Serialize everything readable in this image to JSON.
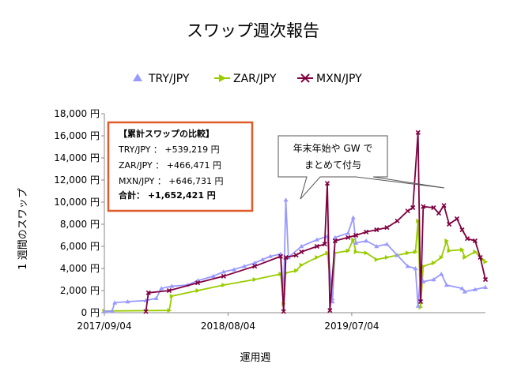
{
  "chart_data": {
    "type": "line",
    "title": "スワップ週次報告",
    "xlabel": "運用週",
    "ylabel": "1 週間のスワップ",
    "ylim": [
      0,
      18000
    ],
    "y_ticks": [
      "0 円",
      "2,000 円",
      "4,000 円",
      "6,000 円",
      "8,000 円",
      "10,000 円",
      "12,000 円",
      "14,000 円",
      "16,000 円",
      "18,000 円"
    ],
    "x_ticks": [
      "2017/09/04",
      "2018/08/04",
      "2019/07/04"
    ],
    "x_range": [
      "2017/09/04",
      "2020/06/29"
    ],
    "grid": false,
    "legend_position": "top",
    "series": [
      {
        "name": "TRY/JPY",
        "color": "#9999ff",
        "marker": "triangle",
        "points": [
          [
            "2017/09/04",
            100
          ],
          [
            "2017/09/25",
            150
          ],
          [
            "2017/10/02",
            900
          ],
          [
            "2017/11/06",
            1000
          ],
          [
            "2017/12/25",
            1100
          ],
          [
            "2018/01/22",
            1300
          ],
          [
            "2018/02/05",
            2200
          ],
          [
            "2018/03/05",
            2400
          ],
          [
            "2018/04/16",
            2500
          ],
          [
            "2018/05/14",
            2900
          ],
          [
            "2018/06/25",
            3300
          ],
          [
            "2018/07/23",
            3700
          ],
          [
            "2018/08/20",
            3900
          ],
          [
            "2018/09/17",
            4200
          ],
          [
            "2018/10/15",
            4500
          ],
          [
            "2018/11/05",
            4800
          ],
          [
            "2018/11/26",
            5100
          ],
          [
            "2018/12/24",
            5300
          ],
          [
            "2019/01/01",
            1800
          ],
          [
            "2019/01/07",
            10200
          ],
          [
            "2019/01/14",
            5000
          ],
          [
            "2019/02/18",
            6000
          ],
          [
            "2019/04/01",
            6600
          ],
          [
            "2019/04/29",
            6900
          ],
          [
            "2019/05/13",
            1000
          ],
          [
            "2019/05/20",
            6800
          ],
          [
            "2019/06/24",
            7200
          ],
          [
            "2019/07/08",
            8600
          ],
          [
            "2019/07/15",
            6300
          ],
          [
            "2019/08/12",
            6500
          ],
          [
            "2019/09/09",
            6000
          ],
          [
            "2019/10/07",
            6200
          ],
          [
            "2019/11/04",
            5200
          ],
          [
            "2019/12/02",
            4200
          ],
          [
            "2019/12/23",
            4000
          ],
          [
            "2019/12/30",
            600
          ],
          [
            "2020/01/06",
            3500
          ],
          [
            "2020/01/13",
            2800
          ],
          [
            "2020/02/10",
            3000
          ],
          [
            "2020/03/02",
            3500
          ],
          [
            "2020/03/16",
            2500
          ],
          [
            "2020/04/27",
            2200
          ],
          [
            "2020/05/04",
            1900
          ],
          [
            "2020/06/01",
            2100
          ],
          [
            "2020/06/29",
            2300
          ]
        ]
      },
      {
        "name": "ZAR/JPY",
        "color": "#99cc00",
        "marker": "arrow",
        "points": [
          [
            "2017/09/04",
            150
          ],
          [
            "2018/02/26",
            200
          ],
          [
            "2018/03/05",
            1500
          ],
          [
            "2018/05/14",
            2000
          ],
          [
            "2018/07/23",
            2500
          ],
          [
            "2018/10/15",
            3000
          ],
          [
            "2018/12/24",
            3500
          ],
          [
            "2019/01/01",
            800
          ],
          [
            "2019/01/07",
            3600
          ],
          [
            "2019/02/04",
            3800
          ],
          [
            "2019/02/18",
            4300
          ],
          [
            "2019/04/01",
            5000
          ],
          [
            "2019/04/29",
            5400
          ],
          [
            "2019/05/13",
            1200
          ],
          [
            "2019/05/20",
            5400
          ],
          [
            "2019/06/24",
            5600
          ],
          [
            "2019/07/08",
            6600
          ],
          [
            "2019/07/15",
            5500
          ],
          [
            "2019/08/12",
            5400
          ],
          [
            "2019/09/09",
            4800
          ],
          [
            "2019/10/07",
            5000
          ],
          [
            "2019/11/04",
            5200
          ],
          [
            "2019/12/02",
            5400
          ],
          [
            "2019/12/23",
            5500
          ],
          [
            "2019/12/30",
            8300
          ],
          [
            "2020/01/06",
            500
          ],
          [
            "2020/01/13",
            4200
          ],
          [
            "2020/02/10",
            4500
          ],
          [
            "2020/03/02",
            5000
          ],
          [
            "2020/03/16",
            6500
          ],
          [
            "2020/03/23",
            5600
          ],
          [
            "2020/04/27",
            5700
          ],
          [
            "2020/05/04",
            5000
          ],
          [
            "2020/06/01",
            5500
          ],
          [
            "2020/06/22",
            4800
          ],
          [
            "2020/06/29",
            4600
          ]
        ]
      },
      {
        "name": "MXN/JPY",
        "color": "#800040",
        "marker": "x",
        "points": [
          [
            "2017/12/25",
            100
          ],
          [
            "2018/01/01",
            1800
          ],
          [
            "2018/02/26",
            2000
          ],
          [
            "2018/05/14",
            2700
          ],
          [
            "2018/07/23",
            3300
          ],
          [
            "2018/10/15",
            4200
          ],
          [
            "2018/12/24",
            5100
          ],
          [
            "2019/01/01",
            100
          ],
          [
            "2019/01/07",
            5000
          ],
          [
            "2019/02/04",
            5200
          ],
          [
            "2019/02/18",
            5500
          ],
          [
            "2019/04/01",
            6000
          ],
          [
            "2019/04/22",
            6200
          ],
          [
            "2019/04/29",
            11700
          ],
          [
            "2019/05/06",
            200
          ],
          [
            "2019/05/20",
            6500
          ],
          [
            "2019/06/24",
            6800
          ],
          [
            "2019/07/15",
            7000
          ],
          [
            "2019/08/12",
            7300
          ],
          [
            "2019/09/09",
            7500
          ],
          [
            "2019/10/07",
            7700
          ],
          [
            "2019/11/04",
            8300
          ],
          [
            "2019/12/02",
            9200
          ],
          [
            "2019/12/16",
            9500
          ],
          [
            "2019/12/30",
            16300
          ],
          [
            "2020/01/06",
            1000
          ],
          [
            "2020/01/13",
            9600
          ],
          [
            "2020/02/10",
            9500
          ],
          [
            "2020/02/24",
            9000
          ],
          [
            "2020/03/09",
            9700
          ],
          [
            "2020/03/23",
            8000
          ],
          [
            "2020/04/13",
            8500
          ],
          [
            "2020/04/27",
            7500
          ],
          [
            "2020/05/11",
            6700
          ],
          [
            "2020/06/01",
            6500
          ],
          [
            "2020/06/15",
            5000
          ],
          [
            "2020/06/29",
            3000
          ]
        ]
      }
    ]
  },
  "info_box": {
    "heading": "【累計スワップの比較】",
    "lines": [
      "TRY/JPY ： +539,219 円",
      "ZAR/JPY ： +466,471 円",
      "MXN/JPY ： +646,731 円"
    ],
    "total": "合計： +1,652,421 円",
    "border_color": "#e05a2a"
  },
  "callout": {
    "lines": [
      "年末年始や GW で",
      "まとめて付与"
    ]
  }
}
